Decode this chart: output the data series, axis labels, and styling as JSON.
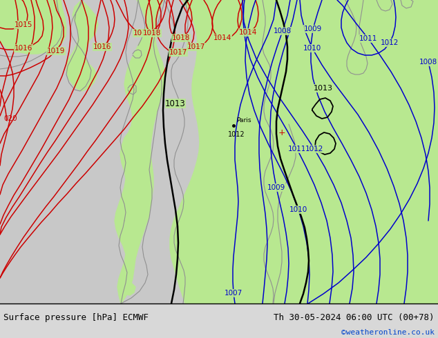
{
  "title_left": "Surface pressure [hPa] ECMWF",
  "title_right": "Th 30-05-2024 06:00 UTC (00+78)",
  "copyright": "©weatheronline.co.uk",
  "bg_green": "#b8e890",
  "bg_grey": "#c8c8c8",
  "bottom_bar": "#d8d8d8",
  "figsize": [
    6.34,
    4.9
  ],
  "dpi": 100
}
